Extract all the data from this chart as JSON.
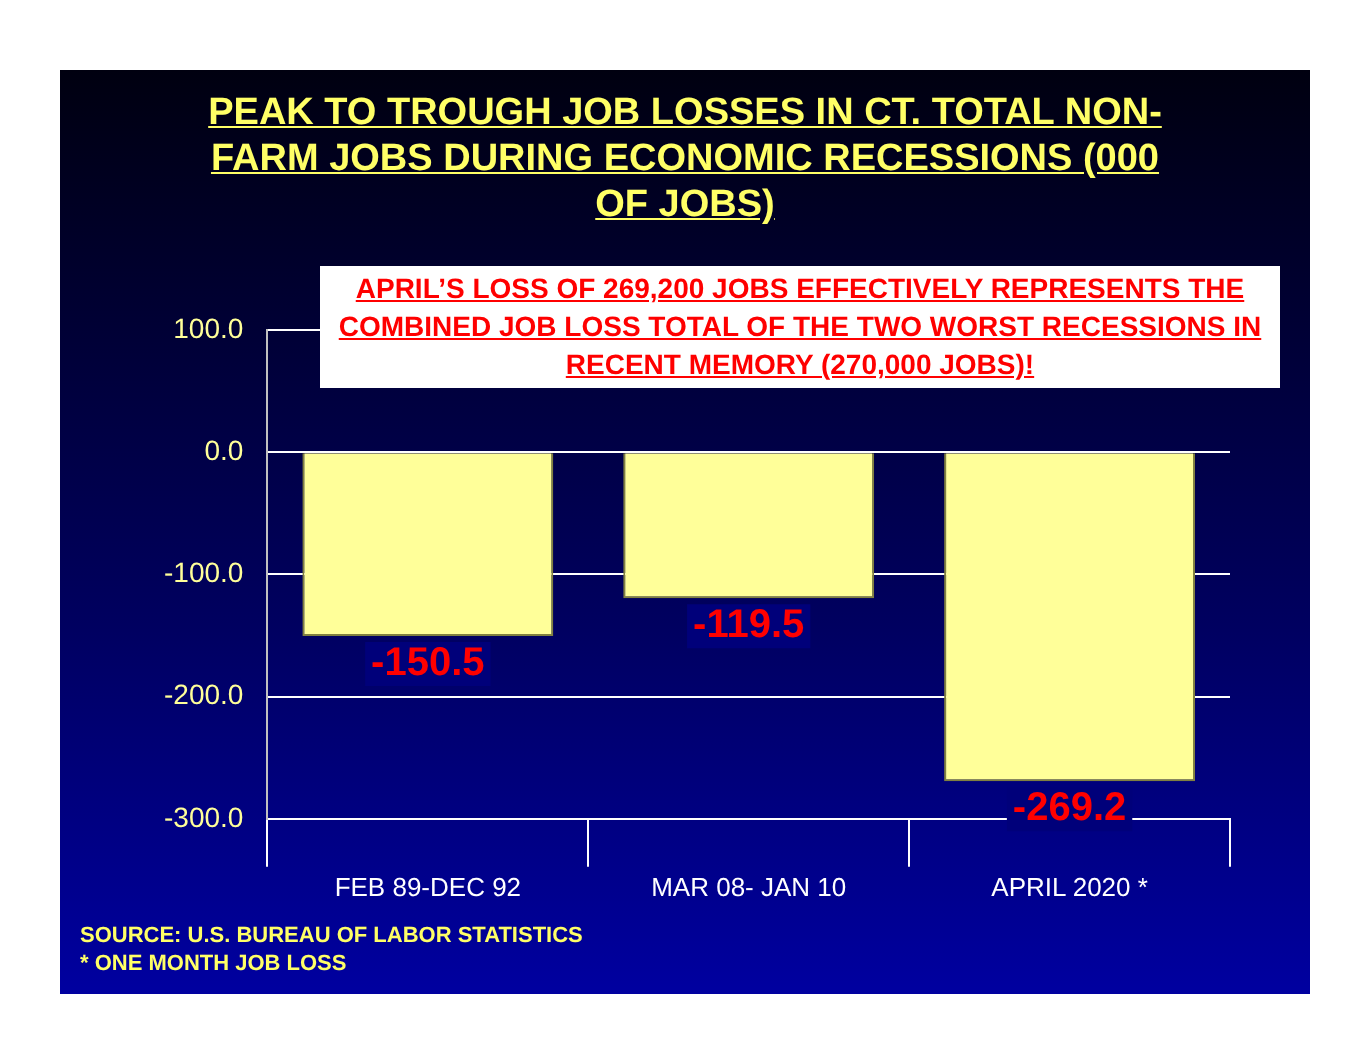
{
  "chart_data": {
    "type": "bar",
    "title": "PEAK TO TROUGH JOB LOSSES IN CT. TOTAL NON-FARM JOBS DURING ECONOMIC RECESSIONS (000 OF JOBS)",
    "categories": [
      "FEB 89-DEC 92",
      "MAR 08- JAN 10",
      "APRIL 2020 *"
    ],
    "values": [
      -150.5,
      -119.5,
      -269.2
    ],
    "color": "#ffff99",
    "ylim": [
      -300,
      100
    ],
    "yticks": [
      {
        "value": -300,
        "label": "-300.0"
      },
      {
        "value": -200,
        "label": "-200.0"
      },
      {
        "value": -100,
        "label": "-100.0"
      },
      {
        "value": 0,
        "label": "0.0"
      },
      {
        "value": 100,
        "label": "100.0"
      }
    ],
    "grid": "y",
    "data_labels": true,
    "annotations": [
      "APRIL’S LOSS OF 269,200 JOBS EFFECTIVELY REPRESENTS THE COMBINED JOB LOSS TOTAL OF THE TWO WORST RECESSIONS IN RECENT MEMORY (270,000 JOBS)!",
      "SOURCE: U.S. BUREAU OF LABOR STATISTICS",
      "* ONE MONTH JOB LOSS"
    ]
  }
}
